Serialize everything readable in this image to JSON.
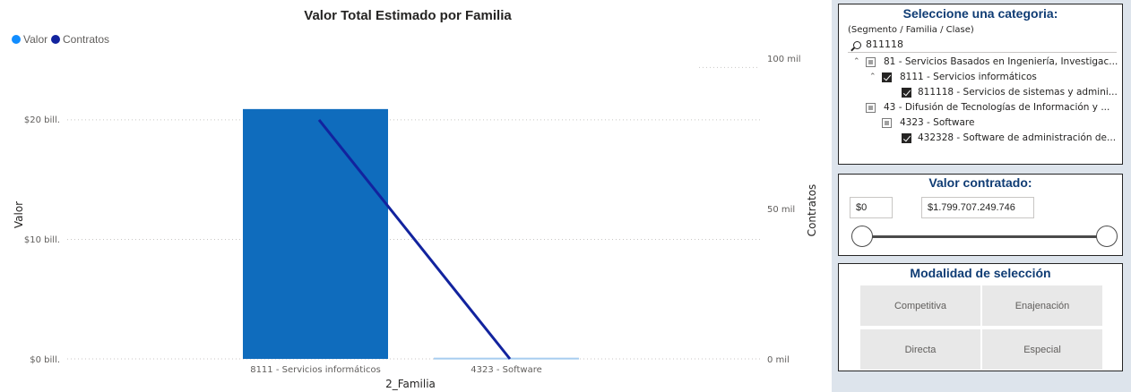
{
  "chart": {
    "title": "Valor Total Estimado por Familia",
    "legend": [
      {
        "label": "Valor",
        "color": "#118dff"
      },
      {
        "label": "Contratos",
        "color": "#12239e"
      }
    ],
    "left_axis": {
      "title": "Valor",
      "ticks": [
        {
          "label": "$0 bill.",
          "value": 0
        },
        {
          "label": "$10 bill.",
          "value": 10
        },
        {
          "label": "$20 bill.",
          "value": 20
        }
      ]
    },
    "right_axis": {
      "title": "Contratos",
      "ticks": [
        {
          "label": "0 mil",
          "value": 0
        },
        {
          "label": "50 mil",
          "value": 50
        },
        {
          "label": "100 mil",
          "value": 100
        }
      ]
    },
    "x_axis_title": "2_Familia",
    "bar_colors": [
      "#0f6cbd",
      "#a7cdf0"
    ],
    "line_color": "#12239e"
  },
  "chart_data": {
    "type": "bar",
    "title": "Valor Total Estimado por Familia",
    "xlabel": "2_Familia",
    "ylabel": "Valor",
    "y2label": "Contratos",
    "categories": [
      "8111 - Servicios informáticos",
      "4323 - Software"
    ],
    "series": [
      {
        "name": "Valor",
        "type": "bar",
        "axis": "left",
        "unit": "bill.",
        "values": [
          20.9,
          0.1
        ]
      },
      {
        "name": "Contratos",
        "type": "line",
        "axis": "right",
        "unit": "mil",
        "values": [
          82,
          0
        ]
      }
    ],
    "ylim": [
      0,
      29.5
    ],
    "y2lim": [
      0,
      121
    ],
    "grid": true,
    "legend_position": "top-left"
  },
  "category_slicer": {
    "title": "Seleccione una categoria:",
    "subtitle": "(Segmento / Familia / Clase)",
    "search_value": "811118",
    "items": [
      {
        "label": "81 - Servicios Basados en Ingeniería, Investigac...",
        "level": 0,
        "state": "partial",
        "expanded": true
      },
      {
        "label": "8111 - Servicios informáticos",
        "level": 1,
        "state": "checked",
        "expanded": true
      },
      {
        "label": "811118 - Servicios de sistemas y admini...",
        "level": 2,
        "state": "checked",
        "expanded": null
      },
      {
        "label": "43 - Difusión de Tecnologías de Información y ...",
        "level": 0,
        "state": "partial",
        "expanded": null
      },
      {
        "label": "4323 - Software",
        "level": 1,
        "state": "partial",
        "expanded": null
      },
      {
        "label": "432328 - Software de administración de...",
        "level": 2,
        "state": "checked",
        "expanded": null
      }
    ]
  },
  "value_slicer": {
    "title": "Valor contratado:",
    "min_value": "$0",
    "max_value": "$1.799.707.249.746"
  },
  "modalidad": {
    "title": "Modalidad de selección",
    "buttons": [
      "Competitiva",
      "Enajenación",
      "Directa",
      "Especial"
    ]
  }
}
